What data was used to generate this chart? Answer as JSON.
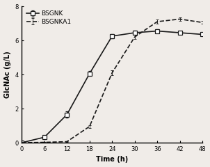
{
  "title": "",
  "xlabel": "Time (h)",
  "ylabel": "GlcNAc (g/L)",
  "xlim": [
    0,
    48
  ],
  "ylim": [
    0,
    8
  ],
  "xticks": [
    0,
    6,
    12,
    18,
    24,
    30,
    36,
    42,
    48
  ],
  "yticks": [
    0,
    2,
    4,
    6,
    8
  ],
  "series": [
    {
      "label": "BSGNK",
      "x": [
        0,
        6,
        12,
        18,
        24,
        30,
        36,
        42,
        48
      ],
      "y": [
        0,
        0.32,
        1.65,
        4.05,
        6.25,
        6.45,
        6.55,
        6.45,
        6.35
      ],
      "yerr": [
        0,
        0.06,
        0.18,
        0.15,
        0.12,
        0.12,
        0.1,
        0.1,
        0.08
      ],
      "linestyle": "-",
      "marker": "s",
      "color": "#1a1a1a",
      "linewidth": 1.2,
      "markersize": 4,
      "fillstyle": "none"
    },
    {
      "label": "BSGNKA1",
      "x": [
        0,
        6,
        12,
        18,
        24,
        30,
        36,
        42,
        48
      ],
      "y": [
        0,
        0.02,
        0.06,
        0.95,
        4.1,
        6.2,
        7.1,
        7.25,
        7.05
      ],
      "yerr": [
        0,
        0.01,
        0.02,
        0.08,
        0.15,
        0.12,
        0.12,
        0.1,
        0.08
      ],
      "linestyle": "--",
      "marker": null,
      "color": "#1a1a1a",
      "linewidth": 1.2,
      "markersize": 0,
      "fillstyle": "full"
    }
  ],
  "legend_loc": "upper left",
  "background_color": "#f0ece8",
  "tick_fontsize": 6,
  "label_fontsize": 7,
  "legend_fontsize": 6.5
}
